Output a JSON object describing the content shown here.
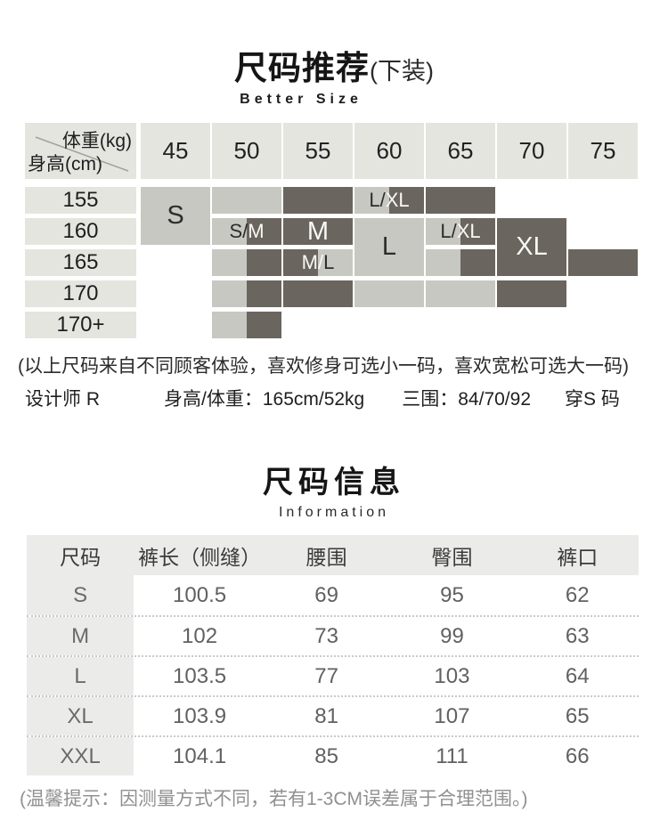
{
  "section1": {
    "title": "尺码推荐",
    "title_suffix": "(下装)",
    "subtitle": "Better Size",
    "grid": {
      "corner_top": "体重(kg)",
      "corner_bottom": "身高(cm)",
      "weights": [
        "45",
        "50",
        "55",
        "60",
        "65",
        "70",
        "75"
      ],
      "heights": [
        "155",
        "160",
        "165",
        "170",
        "170+"
      ],
      "colors": {
        "light": "#c8c8c2",
        "dark": "#6a655e",
        "cell_bg": "#e5e5e0"
      },
      "blocks": [
        {
          "col": 0,
          "row": 0,
          "rowspan": 2,
          "fill": "light",
          "label": [
            {
              "t": "S",
              "c": "dark"
            }
          ],
          "big": true
        },
        {
          "col": 1,
          "row": 0,
          "fill": "light"
        },
        {
          "col": 1,
          "row": 1,
          "fill": "split-ld",
          "label": [
            {
              "t": "S/",
              "c": "dark"
            },
            {
              "t": "M",
              "c": "white"
            }
          ]
        },
        {
          "col": 1,
          "row": 2,
          "fill": "split-ld"
        },
        {
          "col": 1,
          "row": 3,
          "fill": "split-ld"
        },
        {
          "col": 1,
          "row": 4,
          "fill": "split-ld"
        },
        {
          "col": 2,
          "row": 0,
          "fill": "dark"
        },
        {
          "col": 2,
          "row": 1,
          "fill": "dark",
          "label": [
            {
              "t": "M",
              "c": "white"
            }
          ],
          "big": true
        },
        {
          "col": 2,
          "row": 2,
          "fill": "split-dl",
          "label": [
            {
              "t": "M/",
              "c": "white"
            },
            {
              "t": "L",
              "c": "dark"
            }
          ]
        },
        {
          "col": 2,
          "row": 3,
          "fill": "dark"
        },
        {
          "col": 3,
          "row": 0,
          "fill": "split-ld",
          "label": [
            {
              "t": "L/",
              "c": "dark"
            },
            {
              "t": "XL",
              "c": "white"
            }
          ]
        },
        {
          "col": 3,
          "row": 1,
          "rowspan": 2,
          "fill": "light",
          "label": [
            {
              "t": "L",
              "c": "dark"
            }
          ],
          "big": true
        },
        {
          "col": 3,
          "row": 3,
          "fill": "light"
        },
        {
          "col": 4,
          "row": 0,
          "fill": "dark"
        },
        {
          "col": 4,
          "row": 1,
          "fill": "split-ld",
          "label": [
            {
              "t": "L/",
              "c": "dark"
            },
            {
              "t": "XL",
              "c": "white"
            }
          ]
        },
        {
          "col": 4,
          "row": 2,
          "fill": "split-ld"
        },
        {
          "col": 4,
          "row": 3,
          "fill": "light"
        },
        {
          "col": 5,
          "row": 1,
          "rowspan": 2,
          "fill": "dark",
          "label": [
            {
              "t": "XL",
              "c": "white"
            }
          ],
          "big": true
        },
        {
          "col": 5,
          "row": 3,
          "fill": "dark"
        },
        {
          "col": 6,
          "row": 2,
          "fill": "dark"
        }
      ]
    },
    "note": "(以上尺码来自不同顾客体验，喜欢修身可选小一码，喜欢宽松可选大一码)",
    "designer": {
      "name": "设计师 R",
      "height_weight": "身高/体重：165cm/52kg",
      "measurements": "三围：84/70/92",
      "wears": "穿S 码"
    }
  },
  "section2": {
    "title": "尺码信息",
    "subtitle": "Information",
    "table": {
      "headers": [
        "尺码",
        "裤长（侧缝）",
        "腰围",
        "臀围",
        "裤口"
      ],
      "rows": [
        {
          "size": "S",
          "values": [
            "100.5",
            "69",
            "95",
            "62"
          ]
        },
        {
          "size": "M",
          "values": [
            "102",
            "73",
            "99",
            "63"
          ]
        },
        {
          "size": "L",
          "values": [
            "103.5",
            "77",
            "103",
            "64"
          ]
        },
        {
          "size": "XL",
          "values": [
            "103.9",
            "81",
            "107",
            "65"
          ]
        },
        {
          "size": "XXL",
          "values": [
            "104.1",
            "85",
            "111",
            "66"
          ]
        }
      ],
      "header_bg": "#ebebe9"
    },
    "footer": "(温馨提示：因测量方式不同，若有1-3CM误差属于合理范围。)"
  }
}
